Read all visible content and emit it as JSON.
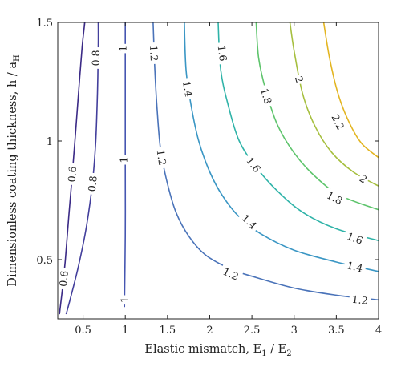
{
  "chart_data": {
    "type": "contour",
    "xlabel": "Elastic mismatch, E",
    "xlabel_sub1": "1",
    "xlabel_mid": " / E",
    "xlabel_sub2": "2",
    "ylabel": "Dimensionless coating thickness, h / a",
    "ylabel_sub": "H",
    "xlim": [
      0.2,
      4
    ],
    "ylim": [
      0.25,
      1.5
    ],
    "x_ticks": [
      0.5,
      1,
      1.5,
      2,
      2.5,
      3,
      3.5,
      4
    ],
    "x_tick_labels": [
      "0.5",
      "1",
      "1.5",
      "2",
      "2.5",
      "3",
      "3.5",
      "4"
    ],
    "y_ticks": [
      0.5,
      1,
      1.5
    ],
    "y_tick_labels": [
      "0.5",
      "1",
      "1.5"
    ],
    "grid": false,
    "contours": [
      {
        "level": 0.6,
        "label": "0.6",
        "color": "#3b2a86",
        "points": [
          [
            0.22,
            0.27
          ],
          [
            0.25,
            0.36
          ],
          [
            0.29,
            0.5
          ],
          [
            0.33,
            0.68
          ],
          [
            0.37,
            0.85
          ],
          [
            0.41,
            1.03
          ],
          [
            0.45,
            1.22
          ],
          [
            0.49,
            1.4
          ],
          [
            0.52,
            1.5
          ]
        ],
        "labels": [
          {
            "x": 0.37,
            "y": 0.86,
            "text": "0.6"
          },
          {
            "x": 0.27,
            "y": 0.42,
            "text": "0.6"
          }
        ]
      },
      {
        "level": 0.8,
        "label": "0.8",
        "color": "#433f9c",
        "points": [
          [
            0.3,
            0.27
          ],
          [
            0.36,
            0.35
          ],
          [
            0.45,
            0.48
          ],
          [
            0.54,
            0.64
          ],
          [
            0.61,
            0.82
          ],
          [
            0.65,
            1.0
          ],
          [
            0.67,
            1.2
          ],
          [
            0.68,
            1.4
          ],
          [
            0.68,
            1.5
          ]
        ],
        "labels": [
          {
            "x": 0.65,
            "y": 1.35,
            "text": "0.8"
          },
          {
            "x": 0.61,
            "y": 0.82,
            "text": "0.8"
          }
        ]
      },
      {
        "level": 1,
        "label": "1",
        "color": "#4656b1",
        "points": [
          [
            0.99,
            0.3
          ],
          [
            1.0,
            0.6
          ],
          [
            1.0,
            0.9
          ],
          [
            1.0,
            1.2
          ],
          [
            1.0,
            1.5
          ]
        ],
        "labels": [
          {
            "x": 0.97,
            "y": 1.39,
            "text": "1"
          },
          {
            "x": 0.98,
            "y": 0.92,
            "text": "1"
          },
          {
            "x": 0.99,
            "y": 0.33,
            "text": "1"
          }
        ]
      },
      {
        "level": 1.2,
        "label": "1.2",
        "color": "#4a73b9",
        "points": [
          [
            1.33,
            1.5
          ],
          [
            1.35,
            1.3
          ],
          [
            1.38,
            1.12
          ],
          [
            1.42,
            0.96
          ],
          [
            1.5,
            0.82
          ],
          [
            1.6,
            0.7
          ],
          [
            1.75,
            0.6
          ],
          [
            1.95,
            0.52
          ],
          [
            2.25,
            0.46
          ],
          [
            2.5,
            0.43
          ],
          [
            3.0,
            0.38
          ],
          [
            3.5,
            0.35
          ],
          [
            4.0,
            0.33
          ]
        ],
        "labels": [
          {
            "x": 1.34,
            "y": 1.37,
            "text": "1.2"
          },
          {
            "x": 1.43,
            "y": 0.93,
            "text": "1.2"
          },
          {
            "x": 2.25,
            "y": 0.44,
            "text": "1.2"
          },
          {
            "x": 3.78,
            "y": 0.33,
            "text": "1.2"
          }
        ]
      },
      {
        "level": 1.4,
        "label": "1.4",
        "color": "#3a96c4",
        "points": [
          [
            1.7,
            1.5
          ],
          [
            1.72,
            1.3
          ],
          [
            1.78,
            1.15
          ],
          [
            1.87,
            1.0
          ],
          [
            2.0,
            0.87
          ],
          [
            2.15,
            0.77
          ],
          [
            2.35,
            0.68
          ],
          [
            2.6,
            0.61
          ],
          [
            3.0,
            0.54
          ],
          [
            3.5,
            0.49
          ],
          [
            4.0,
            0.45
          ]
        ],
        "labels": [
          {
            "x": 1.74,
            "y": 1.22,
            "text": "1.4"
          },
          {
            "x": 2.47,
            "y": 0.66,
            "text": "1.4"
          },
          {
            "x": 3.72,
            "y": 0.47,
            "text": "1.4"
          }
        ]
      },
      {
        "level": 1.6,
        "label": "1.6",
        "color": "#2fb3a8",
        "points": [
          [
            2.1,
            1.5
          ],
          [
            2.13,
            1.3
          ],
          [
            2.22,
            1.15
          ],
          [
            2.35,
            1.0
          ],
          [
            2.55,
            0.89
          ],
          [
            2.8,
            0.79
          ],
          [
            3.1,
            0.7
          ],
          [
            3.5,
            0.63
          ],
          [
            4.0,
            0.58
          ]
        ],
        "labels": [
          {
            "x": 2.15,
            "y": 1.37,
            "text": "1.6"
          },
          {
            "x": 2.52,
            "y": 0.9,
            "text": "1.6"
          },
          {
            "x": 3.72,
            "y": 0.59,
            "text": "1.6"
          }
        ]
      },
      {
        "level": 1.8,
        "label": "1.8",
        "color": "#5ec46c",
        "points": [
          [
            2.55,
            1.5
          ],
          [
            2.58,
            1.35
          ],
          [
            2.66,
            1.22
          ],
          [
            2.8,
            1.07
          ],
          [
            3.0,
            0.95
          ],
          [
            3.25,
            0.85
          ],
          [
            3.55,
            0.77
          ],
          [
            4.0,
            0.71
          ]
        ],
        "labels": [
          {
            "x": 2.67,
            "y": 1.19,
            "text": "1.8"
          },
          {
            "x": 3.48,
            "y": 0.76,
            "text": "1.8"
          }
        ]
      },
      {
        "level": 2,
        "label": "2",
        "color": "#a6bf3f",
        "points": [
          [
            2.95,
            1.5
          ],
          [
            3.0,
            1.38
          ],
          [
            3.1,
            1.2
          ],
          [
            3.25,
            1.06
          ],
          [
            3.45,
            0.95
          ],
          [
            3.7,
            0.87
          ],
          [
            4.0,
            0.81
          ]
        ],
        "labels": [
          {
            "x": 3.06,
            "y": 1.26,
            "text": "2"
          },
          {
            "x": 3.82,
            "y": 0.84,
            "text": "2"
          }
        ]
      },
      {
        "level": 2.2,
        "label": "2.2",
        "color": "#e3b521",
        "points": [
          [
            3.35,
            1.5
          ],
          [
            3.42,
            1.35
          ],
          [
            3.52,
            1.2
          ],
          [
            3.65,
            1.08
          ],
          [
            3.8,
            0.99
          ],
          [
            4.0,
            0.93
          ]
        ],
        "labels": [
          {
            "x": 3.52,
            "y": 1.08,
            "text": "2.2"
          }
        ]
      }
    ]
  }
}
